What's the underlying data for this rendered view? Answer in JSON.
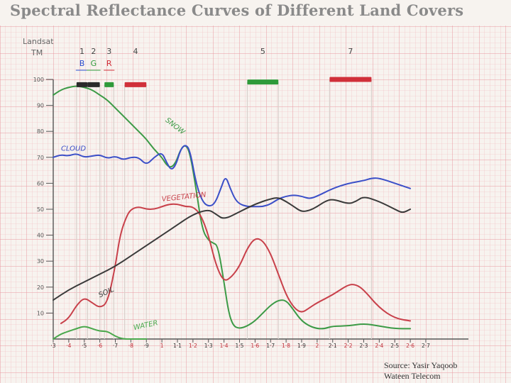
{
  "title": "Spectral Reflectance Curves of Different Land Covers",
  "source": {
    "line1": "Source: Yasir Yaqoob",
    "line2": "Wateen Telecom"
  },
  "chart_data": {
    "type": "line",
    "title": "Spectral Reflectance Curves of Different Land Covers",
    "header_label_1": "Landsat",
    "header_label_2": "TM",
    "ylim": [
      0,
      100
    ],
    "xlim": [
      0.3,
      2.7
    ],
    "y_ticks": [
      {
        "value": 10,
        "label": "10"
      },
      {
        "value": 20,
        "label": "20"
      },
      {
        "value": 30,
        "label": "30"
      },
      {
        "value": 40,
        "label": "40"
      },
      {
        "value": 50,
        "label": "50"
      },
      {
        "value": 60,
        "label": "60"
      },
      {
        "value": 70,
        "label": "70"
      },
      {
        "value": 80,
        "label": "80"
      },
      {
        "value": 90,
        "label": "90"
      },
      {
        "value": 100,
        "label": "100"
      }
    ],
    "x_ticks": [
      {
        "value": 0.3,
        "label": "·3"
      },
      {
        "value": 0.4,
        "label": "·4"
      },
      {
        "value": 0.5,
        "label": "·5"
      },
      {
        "value": 0.6,
        "label": "·6"
      },
      {
        "value": 0.7,
        "label": "·7"
      },
      {
        "value": 0.8,
        "label": "·8"
      },
      {
        "value": 0.9,
        "label": "·9"
      },
      {
        "value": 1.0,
        "label": "1"
      },
      {
        "value": 1.1,
        "label": "1·1"
      },
      {
        "value": 1.2,
        "label": "1·2"
      },
      {
        "value": 1.3,
        "label": "1·3"
      },
      {
        "value": 1.4,
        "label": "1·4"
      },
      {
        "value": 1.5,
        "label": "1·5"
      },
      {
        "value": 1.6,
        "label": "1·6"
      },
      {
        "value": 1.7,
        "label": "1·7"
      },
      {
        "value": 1.8,
        "label": "1·8"
      },
      {
        "value": 1.9,
        "label": "1·9"
      },
      {
        "value": 2.0,
        "label": "2"
      },
      {
        "value": 2.1,
        "label": "2·1"
      },
      {
        "value": 2.2,
        "label": "2·2"
      },
      {
        "value": 2.3,
        "label": "2·3"
      },
      {
        "value": 2.4,
        "label": "2·4"
      },
      {
        "value": 2.5,
        "label": "2·5"
      },
      {
        "value": 2.6,
        "label": "2·6"
      },
      {
        "value": 2.7,
        "label": "2·7"
      }
    ],
    "bands": [
      {
        "number": "1",
        "letter": "B",
        "start": 0.45,
        "end": 0.52,
        "color": "#2a2a2a",
        "letter_color": "#2a4fd0",
        "reflectance": 98
      },
      {
        "number": "2",
        "letter": "G",
        "start": 0.52,
        "end": 0.6,
        "color": "#2a2a2a",
        "letter_color": "#2e9a3a",
        "reflectance": 98
      },
      {
        "number": "3",
        "letter": "R",
        "start": 0.63,
        "end": 0.69,
        "color": "#2e9a3a",
        "letter_color": "#d0303a",
        "reflectance": 98
      },
      {
        "number": "4",
        "letter": "",
        "start": 0.76,
        "end": 0.9,
        "color": "#d0303a",
        "letter_color": "#d0303a",
        "reflectance": 98
      },
      {
        "number": "5",
        "letter": "",
        "start": 1.55,
        "end": 1.75,
        "color": "#2e9a3a",
        "letter_color": "#2e9a3a",
        "reflectance": 99
      },
      {
        "number": "7",
        "letter": "",
        "start": 2.08,
        "end": 2.35,
        "color": "#d0303a",
        "letter_color": "#d0303a",
        "reflectance": 100
      }
    ],
    "series": [
      {
        "name": "SNOW",
        "color": "#3c9a46",
        "label_x": 1.02,
        "label_y": 84,
        "label_rotation": 38,
        "x": [
          0.3,
          0.35,
          0.4,
          0.45,
          0.5,
          0.55,
          0.6,
          0.65,
          0.7,
          0.75,
          0.8,
          0.85,
          0.9,
          0.95,
          1.0,
          1.03,
          1.06,
          1.09,
          1.12,
          1.15,
          1.18,
          1.22,
          1.26,
          1.3,
          1.33,
          1.36,
          1.4,
          1.43,
          1.46,
          1.5,
          1.55,
          1.6,
          1.65,
          1.7,
          1.75,
          1.8,
          1.85,
          1.9,
          1.95,
          2.0,
          2.05,
          2.1,
          2.2,
          2.3,
          2.4,
          2.5,
          2.6
        ],
        "y": [
          94,
          96,
          97,
          97.5,
          97,
          96,
          94,
          92,
          89,
          86,
          83,
          80,
          77,
          73,
          70,
          67,
          66,
          68,
          73,
          75,
          72,
          58,
          42,
          38,
          37,
          36,
          22,
          10,
          5,
          4,
          5,
          7,
          10,
          13,
          15,
          15,
          11,
          7,
          5,
          4,
          4,
          5,
          5,
          6,
          5,
          4,
          4
        ]
      },
      {
        "name": "CLOUD",
        "color": "#3b4fc8",
        "label_x": 0.35,
        "label_y": 72.5,
        "label_rotation": 0,
        "x": [
          0.3,
          0.35,
          0.4,
          0.45,
          0.5,
          0.55,
          0.6,
          0.65,
          0.7,
          0.75,
          0.8,
          0.85,
          0.9,
          0.95,
          1.0,
          1.03,
          1.06,
          1.09,
          1.12,
          1.15,
          1.18,
          1.22,
          1.26,
          1.3,
          1.34,
          1.38,
          1.41,
          1.44,
          1.47,
          1.5,
          1.55,
          1.6,
          1.65,
          1.7,
          1.75,
          1.8,
          1.85,
          1.9,
          1.95,
          2.0,
          2.1,
          2.2,
          2.3,
          2.35,
          2.4,
          2.5,
          2.6
        ],
        "y": [
          70,
          71,
          70.5,
          71.5,
          70,
          70.5,
          71,
          69.5,
          70.5,
          69,
          70,
          70,
          67,
          70,
          72,
          68,
          65,
          67,
          73,
          75,
          73,
          60,
          53,
          51,
          52,
          58,
          63,
          58,
          54,
          52,
          51,
          51,
          51,
          52,
          54,
          55,
          55.5,
          55,
          54,
          55,
          58,
          60,
          61,
          62,
          62,
          60,
          58
        ]
      },
      {
        "name": "VEGETATION",
        "color": "#c8404a",
        "label_x": 1.0,
        "label_y": 53,
        "label_rotation": -6,
        "x": [
          0.35,
          0.4,
          0.45,
          0.5,
          0.55,
          0.6,
          0.65,
          0.7,
          0.73,
          0.77,
          0.8,
          0.85,
          0.9,
          0.95,
          1.0,
          1.05,
          1.1,
          1.15,
          1.2,
          1.25,
          1.3,
          1.35,
          1.4,
          1.45,
          1.5,
          1.55,
          1.6,
          1.65,
          1.7,
          1.75,
          1.8,
          1.85,
          1.9,
          1.95,
          2.0,
          2.1,
          2.2,
          2.25,
          2.3,
          2.4,
          2.5,
          2.6
        ],
        "y": [
          6,
          8,
          13,
          16,
          14,
          12,
          14,
          28,
          40,
          47,
          50,
          51,
          50,
          50,
          51,
          52,
          52,
          51,
          51,
          48,
          40,
          28,
          22,
          24,
          28,
          35,
          39,
          38,
          33,
          25,
          17,
          12,
          10,
          12,
          14,
          17,
          21,
          21,
          19,
          12,
          8,
          7
        ]
      },
      {
        "name": "SOIL",
        "color": "#3a3a3a",
        "label_x": 0.6,
        "label_y": 16,
        "label_rotation": -24,
        "x": [
          0.3,
          0.4,
          0.5,
          0.6,
          0.7,
          0.8,
          0.9,
          1.0,
          1.1,
          1.2,
          1.3,
          1.35,
          1.4,
          1.5,
          1.6,
          1.7,
          1.75,
          1.8,
          1.85,
          1.9,
          1.95,
          2.0,
          2.05,
          2.1,
          2.2,
          2.25,
          2.3,
          2.4,
          2.5,
          2.55,
          2.6
        ],
        "y": [
          15,
          19,
          22,
          25,
          28,
          32,
          36,
          40,
          44,
          48,
          50,
          48,
          46,
          49,
          52,
          54,
          54.5,
          53,
          51,
          49,
          49.5,
          51,
          53,
          54,
          52,
          53,
          55,
          53,
          50,
          48.5,
          50
        ]
      },
      {
        "name": "WATER",
        "color": "#4aa84c",
        "label_x": 0.82,
        "label_y": 3.5,
        "label_rotation": -12,
        "x": [
          0.3,
          0.35,
          0.4,
          0.45,
          0.5,
          0.55,
          0.6,
          0.65,
          0.7,
          0.75,
          0.8,
          0.85,
          0.9
        ],
        "y": [
          0,
          2,
          3,
          4,
          5,
          4,
          3,
          3,
          1,
          0,
          0,
          0,
          0
        ]
      }
    ]
  }
}
